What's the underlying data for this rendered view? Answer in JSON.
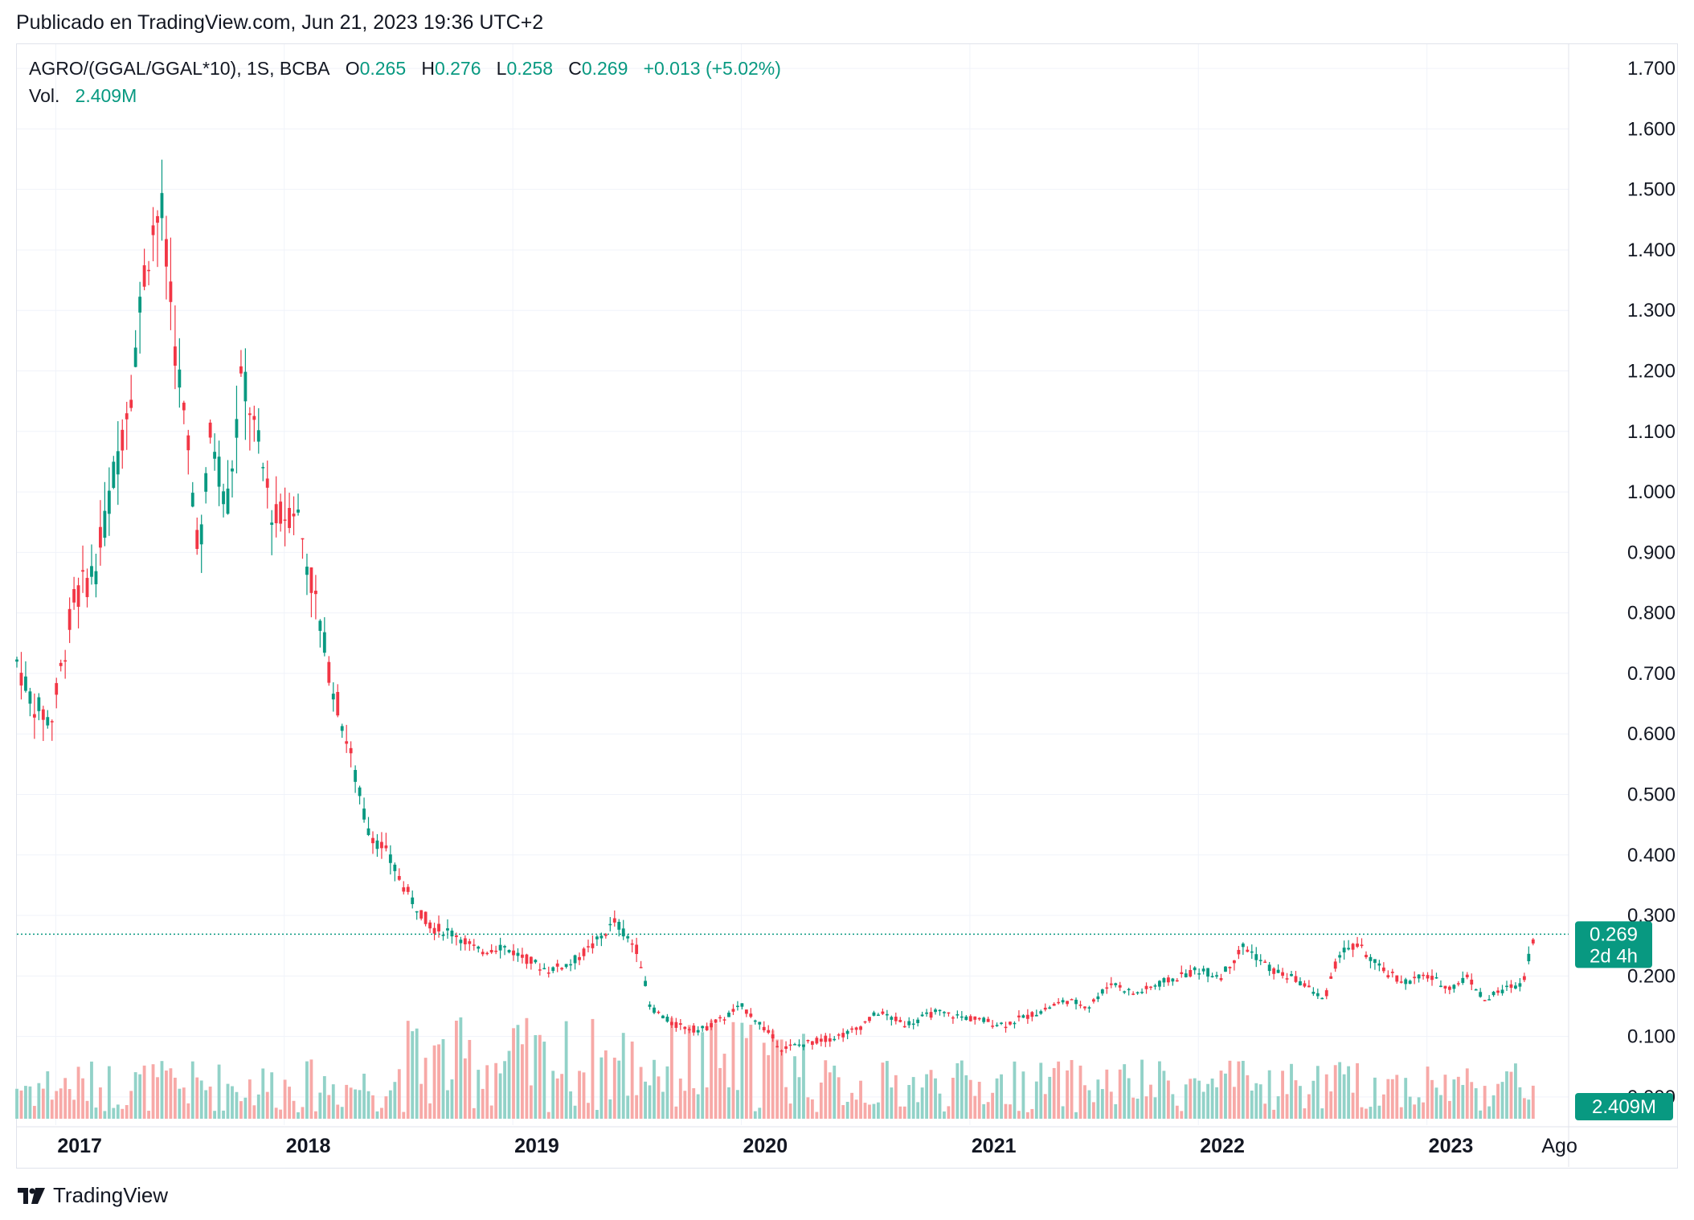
{
  "header": {
    "published": "Publicado en TradingView.com, Jun 21, 2023 19:36 UTC+2"
  },
  "legend": {
    "symbol": "AGRO/(GGAL/GGAL*10), 1S, BCBA",
    "o_label": "O",
    "o_value": "0.265",
    "h_label": "H",
    "h_value": "0.276",
    "l_label": "L",
    "l_value": "0.258",
    "c_label": "C",
    "c_value": "0.269",
    "change": "+0.013 (+5.02%)",
    "vol_label": "Vol.",
    "vol_value": "2.409M"
  },
  "footer": {
    "brand": "TradingView",
    "logo_icon": "tradingview-logo-icon"
  },
  "colors": {
    "up": "#089981",
    "down": "#f23645",
    "up_vol": "#92d2c8",
    "down_vol": "#f7a9a7",
    "grid": "#f0f3fa"
  },
  "chart_data": {
    "type": "candlestick",
    "interval": "1W",
    "y_axis": {
      "ticks": [
        "1.700",
        "1.600",
        "1.500",
        "1.400",
        "1.300",
        "1.200",
        "1.100",
        "1.000",
        "0.900",
        "0.800",
        "0.700",
        "0.600",
        "0.500",
        "0.400",
        "0.300",
        "0.200",
        "0.100",
        "-0.000"
      ],
      "range": [
        -0.04,
        1.74
      ],
      "position": "right"
    },
    "x_axis": {
      "labels": [
        {
          "label": "2017",
          "t": 2017.0
        },
        {
          "label": "2018",
          "t": 2018.0
        },
        {
          "label": "2019",
          "t": 2019.0
        },
        {
          "label": "2020",
          "t": 2020.0
        },
        {
          "label": "2021",
          "t": 2021.0
        },
        {
          "label": "2022",
          "t": 2022.0
        },
        {
          "label": "2023",
          "t": 2023.0
        },
        {
          "label": "Ago",
          "t": 2023.58
        }
      ],
      "range": [
        2016.83,
        2023.62
      ]
    },
    "last_price": {
      "value": 0.269,
      "label": "0.269",
      "countdown": "2d 4h"
    },
    "volume_badge": "2.409M",
    "price_path": [
      [
        2016.83,
        0.72
      ],
      [
        2016.9,
        0.65
      ],
      [
        2016.98,
        0.62
      ],
      [
        2017.08,
        0.82
      ],
      [
        2017.18,
        0.88
      ],
      [
        2017.25,
        1.02
      ],
      [
        2017.33,
        1.18
      ],
      [
        2017.4,
        1.4
      ],
      [
        2017.46,
        1.47
      ],
      [
        2017.5,
        1.32
      ],
      [
        2017.56,
        1.12
      ],
      [
        2017.63,
        0.9
      ],
      [
        2017.68,
        1.1
      ],
      [
        2017.75,
        0.98
      ],
      [
        2017.82,
        1.2
      ],
      [
        2017.88,
        1.08
      ],
      [
        2017.96,
        0.95
      ],
      [
        2018.05,
        0.98
      ],
      [
        2018.12,
        0.85
      ],
      [
        2018.2,
        0.7
      ],
      [
        2018.28,
        0.58
      ],
      [
        2018.36,
        0.45
      ],
      [
        2018.45,
        0.4
      ],
      [
        2018.55,
        0.33
      ],
      [
        2018.65,
        0.28
      ],
      [
        2018.75,
        0.27
      ],
      [
        2018.85,
        0.24
      ],
      [
        2018.95,
        0.25
      ],
      [
        2019.05,
        0.23
      ],
      [
        2019.15,
        0.21
      ],
      [
        2019.25,
        0.22
      ],
      [
        2019.35,
        0.25
      ],
      [
        2019.45,
        0.29
      ],
      [
        2019.55,
        0.24
      ],
      [
        2019.6,
        0.15
      ],
      [
        2019.7,
        0.12
      ],
      [
        2019.82,
        0.11
      ],
      [
        2019.92,
        0.13
      ],
      [
        2020.0,
        0.15
      ],
      [
        2020.06,
        0.13
      ],
      [
        2020.18,
        0.08
      ],
      [
        2020.3,
        0.09
      ],
      [
        2020.42,
        0.1
      ],
      [
        2020.5,
        0.11
      ],
      [
        2020.6,
        0.14
      ],
      [
        2020.72,
        0.12
      ],
      [
        2020.85,
        0.14
      ],
      [
        2021.0,
        0.13
      ],
      [
        2021.15,
        0.12
      ],
      [
        2021.3,
        0.14
      ],
      [
        2021.42,
        0.16
      ],
      [
        2021.52,
        0.15
      ],
      [
        2021.62,
        0.19
      ],
      [
        2021.72,
        0.17
      ],
      [
        2021.85,
        0.19
      ],
      [
        2022.0,
        0.21
      ],
      [
        2022.1,
        0.2
      ],
      [
        2022.2,
        0.25
      ],
      [
        2022.32,
        0.21
      ],
      [
        2022.45,
        0.19
      ],
      [
        2022.55,
        0.16
      ],
      [
        2022.62,
        0.24
      ],
      [
        2022.7,
        0.25
      ],
      [
        2022.8,
        0.21
      ],
      [
        2022.9,
        0.19
      ],
      [
        2023.0,
        0.2
      ],
      [
        2023.1,
        0.18
      ],
      [
        2023.18,
        0.2
      ],
      [
        2023.25,
        0.16
      ],
      [
        2023.35,
        0.18
      ],
      [
        2023.42,
        0.19
      ],
      [
        2023.45,
        0.24
      ],
      [
        2023.47,
        0.269
      ]
    ]
  }
}
